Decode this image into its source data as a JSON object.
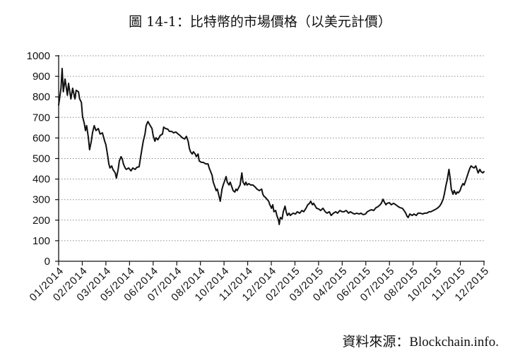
{
  "chart_data": {
    "type": "line",
    "title": "圖 14-1：比特幣的市場價格（以美元計價）",
    "source": "資料來源：Blockchain.info.",
    "xlabel": "",
    "ylabel": "",
    "xlim": [
      "2014-01-01",
      "2015-12-31"
    ],
    "ylim": [
      0,
      1000
    ],
    "y_ticks": [
      0,
      100,
      200,
      300,
      400,
      500,
      600,
      700,
      800,
      900,
      1000
    ],
    "x_tick_labels": [
      "01/2014",
      "02/2014",
      "03/2014",
      "05/2014",
      "06/2014",
      "07/2014",
      "08/2014",
      "10/2014",
      "11/2014",
      "12/2014",
      "02/2015",
      "03/2015",
      "04/2015",
      "06/2015",
      "07/2015",
      "08/2015",
      "10/2015",
      "11/2015",
      "12/2015"
    ],
    "grid": true,
    "legend": false,
    "line_color": "#111111",
    "series": [
      {
        "points": [
          [
            "2014-01-01",
            760
          ],
          [
            "2014-01-03",
            800
          ],
          [
            "2014-01-05",
            842
          ],
          [
            "2014-01-07",
            938
          ],
          [
            "2014-01-09",
            825
          ],
          [
            "2014-01-12",
            887
          ],
          [
            "2014-01-16",
            808
          ],
          [
            "2014-01-18",
            866
          ],
          [
            "2014-01-22",
            790
          ],
          [
            "2014-01-25",
            842
          ],
          [
            "2014-01-29",
            790
          ],
          [
            "2014-01-31",
            832
          ],
          [
            "2014-02-04",
            825
          ],
          [
            "2014-02-06",
            790
          ],
          [
            "2014-02-09",
            773
          ],
          [
            "2014-02-11",
            704
          ],
          [
            "2014-02-14",
            670
          ],
          [
            "2014-02-16",
            636
          ],
          [
            "2014-02-18",
            660
          ],
          [
            "2014-02-21",
            601
          ],
          [
            "2014-02-23",
            543
          ],
          [
            "2014-02-26",
            584
          ],
          [
            "2014-02-28",
            625
          ],
          [
            "2014-03-03",
            660
          ],
          [
            "2014-03-06",
            636
          ],
          [
            "2014-03-10",
            646
          ],
          [
            "2014-03-13",
            619
          ],
          [
            "2014-03-17",
            625
          ],
          [
            "2014-03-21",
            584
          ],
          [
            "2014-03-23",
            567
          ],
          [
            "2014-03-26",
            515
          ],
          [
            "2014-03-28",
            474
          ],
          [
            "2014-03-30",
            454
          ],
          [
            "2014-04-02",
            464
          ],
          [
            "2014-04-04",
            447
          ],
          [
            "2014-04-08",
            430
          ],
          [
            "2014-04-10",
            405
          ],
          [
            "2014-04-13",
            447
          ],
          [
            "2014-04-15",
            488
          ],
          [
            "2014-04-18",
            509
          ],
          [
            "2014-04-20",
            498
          ],
          [
            "2014-04-22",
            474
          ],
          [
            "2014-04-25",
            454
          ],
          [
            "2014-04-27",
            447
          ],
          [
            "2014-05-01",
            454
          ],
          [
            "2014-05-05",
            440
          ],
          [
            "2014-05-08",
            454
          ],
          [
            "2014-05-12",
            447
          ],
          [
            "2014-05-15",
            457
          ],
          [
            "2014-05-19",
            460
          ],
          [
            "2014-05-21",
            498
          ],
          [
            "2014-05-24",
            550
          ],
          [
            "2014-05-26",
            584
          ],
          [
            "2014-05-29",
            619
          ],
          [
            "2014-05-31",
            660
          ],
          [
            "2014-06-03",
            680
          ],
          [
            "2014-06-05",
            670
          ],
          [
            "2014-06-07",
            660
          ],
          [
            "2014-06-10",
            646
          ],
          [
            "2014-06-12",
            612
          ],
          [
            "2014-06-15",
            584
          ],
          [
            "2014-06-17",
            601
          ],
          [
            "2014-06-20",
            591
          ],
          [
            "2014-06-22",
            601
          ],
          [
            "2014-06-24",
            612
          ],
          [
            "2014-06-28",
            619
          ],
          [
            "2014-06-30",
            653
          ],
          [
            "2014-07-03",
            646
          ],
          [
            "2014-07-07",
            643
          ],
          [
            "2014-07-10",
            632
          ],
          [
            "2014-07-14",
            632
          ],
          [
            "2014-07-17",
            625
          ],
          [
            "2014-07-21",
            629
          ],
          [
            "2014-07-25",
            619
          ],
          [
            "2014-07-28",
            612
          ],
          [
            "2014-08-01",
            601
          ],
          [
            "2014-08-05",
            595
          ],
          [
            "2014-08-08",
            608
          ],
          [
            "2014-08-11",
            584
          ],
          [
            "2014-08-13",
            550
          ],
          [
            "2014-08-15",
            533
          ],
          [
            "2014-08-18",
            522
          ],
          [
            "2014-08-20",
            533
          ],
          [
            "2014-08-23",
            522
          ],
          [
            "2014-08-25",
            509
          ],
          [
            "2014-08-28",
            522
          ],
          [
            "2014-08-30",
            488
          ],
          [
            "2014-09-03",
            481
          ],
          [
            "2014-09-06",
            481
          ],
          [
            "2014-09-10",
            474
          ],
          [
            "2014-09-14",
            474
          ],
          [
            "2014-09-16",
            454
          ],
          [
            "2014-09-18",
            440
          ],
          [
            "2014-09-21",
            419
          ],
          [
            "2014-09-23",
            385
          ],
          [
            "2014-09-26",
            361
          ],
          [
            "2014-09-28",
            344
          ],
          [
            "2014-09-30",
            351
          ],
          [
            "2014-10-03",
            316
          ],
          [
            "2014-10-05",
            292
          ],
          [
            "2014-10-08",
            351
          ],
          [
            "2014-10-10",
            371
          ],
          [
            "2014-10-13",
            395
          ],
          [
            "2014-10-15",
            412
          ],
          [
            "2014-10-17",
            385
          ],
          [
            "2014-10-20",
            371
          ],
          [
            "2014-10-22",
            385
          ],
          [
            "2014-10-25",
            361
          ],
          [
            "2014-10-27",
            344
          ],
          [
            "2014-10-30",
            337
          ],
          [
            "2014-11-01",
            351
          ],
          [
            "2014-11-03",
            344
          ],
          [
            "2014-11-06",
            361
          ],
          [
            "2014-11-08",
            371
          ],
          [
            "2014-11-11",
            430
          ],
          [
            "2014-11-13",
            385
          ],
          [
            "2014-11-16",
            371
          ],
          [
            "2014-11-18",
            385
          ],
          [
            "2014-11-20",
            371
          ],
          [
            "2014-11-23",
            378
          ],
          [
            "2014-11-26",
            371
          ],
          [
            "2014-11-30",
            371
          ],
          [
            "2014-12-04",
            361
          ],
          [
            "2014-12-07",
            351
          ],
          [
            "2014-12-11",
            344
          ],
          [
            "2014-12-15",
            351
          ],
          [
            "2014-12-17",
            326
          ],
          [
            "2014-12-19",
            316
          ],
          [
            "2014-12-22",
            309
          ],
          [
            "2014-12-24",
            302
          ],
          [
            "2014-12-27",
            292
          ],
          [
            "2014-12-29",
            275
          ],
          [
            "2015-01-01",
            258
          ],
          [
            "2015-01-03",
            275
          ],
          [
            "2015-01-05",
            241
          ],
          [
            "2015-01-08",
            247
          ],
          [
            "2015-01-10",
            223
          ],
          [
            "2015-01-13",
            199
          ],
          [
            "2015-01-14",
            179
          ],
          [
            "2015-01-16",
            213
          ],
          [
            "2015-01-19",
            206
          ],
          [
            "2015-01-21",
            241
          ],
          [
            "2015-01-24",
            268
          ],
          [
            "2015-01-26",
            241
          ],
          [
            "2015-01-28",
            223
          ],
          [
            "2015-01-31",
            234
          ],
          [
            "2015-02-02",
            223
          ],
          [
            "2015-02-05",
            230
          ],
          [
            "2015-02-07",
            234
          ],
          [
            "2015-02-11",
            230
          ],
          [
            "2015-02-14",
            241
          ],
          [
            "2015-02-18",
            234
          ],
          [
            "2015-02-22",
            247
          ],
          [
            "2015-02-25",
            241
          ],
          [
            "2015-03-01",
            258
          ],
          [
            "2015-03-04",
            275
          ],
          [
            "2015-03-07",
            282
          ],
          [
            "2015-03-09",
            292
          ],
          [
            "2015-03-12",
            275
          ],
          [
            "2015-03-14",
            282
          ],
          [
            "2015-03-17",
            268
          ],
          [
            "2015-03-19",
            258
          ],
          [
            "2015-03-23",
            254
          ],
          [
            "2015-03-26",
            247
          ],
          [
            "2015-03-30",
            258
          ],
          [
            "2015-04-03",
            241
          ],
          [
            "2015-04-06",
            234
          ],
          [
            "2015-04-10",
            241
          ],
          [
            "2015-04-13",
            223
          ],
          [
            "2015-04-17",
            234
          ],
          [
            "2015-04-21",
            241
          ],
          [
            "2015-04-24",
            234
          ],
          [
            "2015-04-28",
            247
          ],
          [
            "2015-05-02",
            241
          ],
          [
            "2015-05-05",
            241
          ],
          [
            "2015-05-09",
            247
          ],
          [
            "2015-05-13",
            234
          ],
          [
            "2015-05-16",
            241
          ],
          [
            "2015-05-20",
            234
          ],
          [
            "2015-05-23",
            230
          ],
          [
            "2015-05-27",
            234
          ],
          [
            "2015-05-31",
            230
          ],
          [
            "2015-06-03",
            234
          ],
          [
            "2015-06-07",
            227
          ],
          [
            "2015-06-11",
            230
          ],
          [
            "2015-06-14",
            241
          ],
          [
            "2015-06-18",
            247
          ],
          [
            "2015-06-21",
            251
          ],
          [
            "2015-06-25",
            247
          ],
          [
            "2015-06-29",
            261
          ],
          [
            "2015-07-02",
            265
          ],
          [
            "2015-07-06",
            275
          ],
          [
            "2015-07-08",
            282
          ],
          [
            "2015-07-11",
            302
          ],
          [
            "2015-07-13",
            289
          ],
          [
            "2015-07-16",
            275
          ],
          [
            "2015-07-18",
            282
          ],
          [
            "2015-07-22",
            285
          ],
          [
            "2015-07-25",
            275
          ],
          [
            "2015-07-29",
            282
          ],
          [
            "2015-08-02",
            275
          ],
          [
            "2015-08-05",
            268
          ],
          [
            "2015-08-09",
            261
          ],
          [
            "2015-08-13",
            258
          ],
          [
            "2015-08-16",
            247
          ],
          [
            "2015-08-19",
            234
          ],
          [
            "2015-08-21",
            220
          ],
          [
            "2015-08-23",
            213
          ],
          [
            "2015-08-26",
            230
          ],
          [
            "2015-08-30",
            223
          ],
          [
            "2015-09-02",
            230
          ],
          [
            "2015-09-06",
            223
          ],
          [
            "2015-09-09",
            234
          ],
          [
            "2015-09-13",
            234
          ],
          [
            "2015-09-17",
            230
          ],
          [
            "2015-09-20",
            234
          ],
          [
            "2015-09-24",
            234
          ],
          [
            "2015-09-28",
            241
          ],
          [
            "2015-10-01",
            241
          ],
          [
            "2015-10-05",
            247
          ],
          [
            "2015-10-08",
            251
          ],
          [
            "2015-10-12",
            258
          ],
          [
            "2015-10-16",
            268
          ],
          [
            "2015-10-19",
            282
          ],
          [
            "2015-10-22",
            302
          ],
          [
            "2015-10-24",
            326
          ],
          [
            "2015-10-27",
            371
          ],
          [
            "2015-10-29",
            395
          ],
          [
            "2015-11-01",
            447
          ],
          [
            "2015-11-03",
            405
          ],
          [
            "2015-11-05",
            351
          ],
          [
            "2015-11-08",
            326
          ],
          [
            "2015-11-10",
            344
          ],
          [
            "2015-11-13",
            326
          ],
          [
            "2015-11-15",
            337
          ],
          [
            "2015-11-17",
            333
          ],
          [
            "2015-11-20",
            344
          ],
          [
            "2015-11-22",
            361
          ],
          [
            "2015-11-25",
            378
          ],
          [
            "2015-11-27",
            371
          ],
          [
            "2015-11-30",
            395
          ],
          [
            "2015-12-02",
            412
          ],
          [
            "2015-12-04",
            430
          ],
          [
            "2015-12-07",
            454
          ],
          [
            "2015-12-09",
            464
          ],
          [
            "2015-12-12",
            457
          ],
          [
            "2015-12-14",
            454
          ],
          [
            "2015-12-17",
            464
          ],
          [
            "2015-12-19",
            447
          ],
          [
            "2015-12-21",
            430
          ],
          [
            "2015-12-24",
            447
          ],
          [
            "2015-12-26",
            436
          ],
          [
            "2015-12-29",
            430
          ],
          [
            "2015-12-31",
            436
          ]
        ]
      }
    ]
  }
}
